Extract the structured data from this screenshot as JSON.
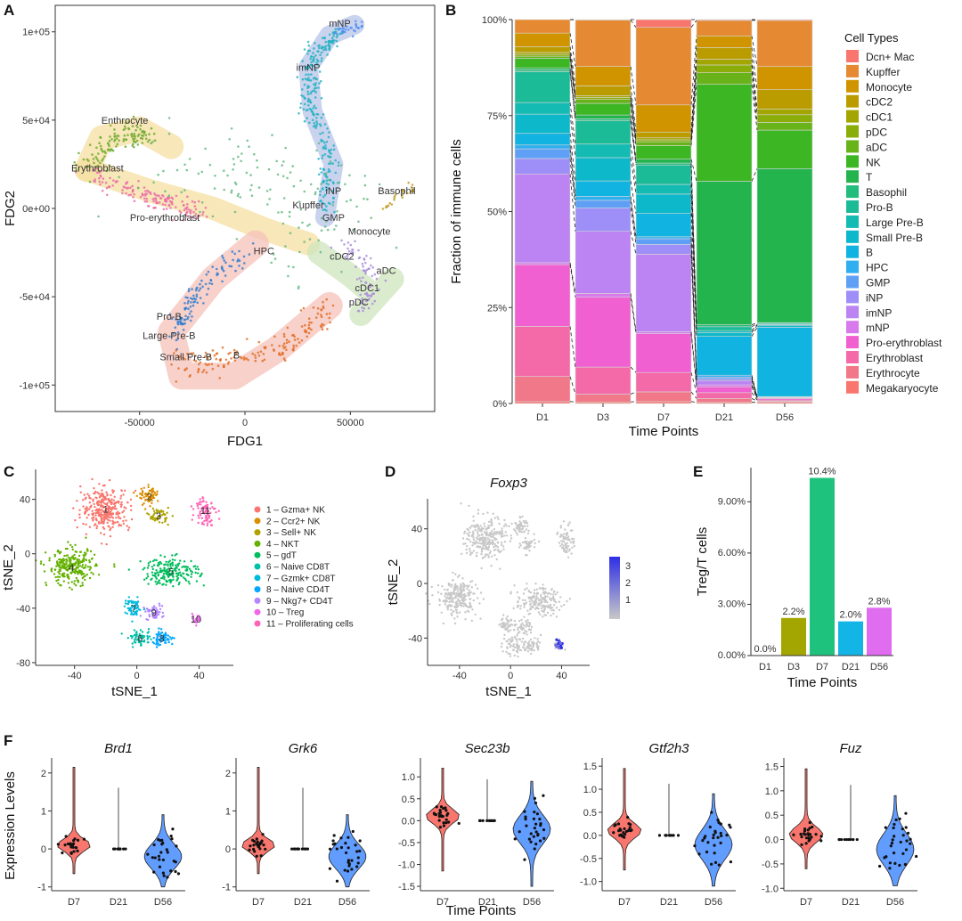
{
  "panels": {
    "A": "A",
    "B": "B",
    "C": "C",
    "D": "D",
    "E": "E",
    "F": "F"
  },
  "chart_data": [
    {
      "id": "A",
      "type": "scatter",
      "xlabel": "FDG1",
      "ylabel": "FDG2",
      "x_ticks": [
        "-50000",
        "0",
        "50000"
      ],
      "y_ticks": [
        "1e+05",
        "5e+04",
        "0e+00",
        "-5e+04",
        "-1e+05"
      ],
      "xlim": [
        -90000,
        90000
      ],
      "ylim": [
        -115000,
        115000
      ],
      "annotations": [
        {
          "label": "mNP",
          "x": 45000,
          "y": 103000
        },
        {
          "label": "imNP",
          "x": 30000,
          "y": 78000
        },
        {
          "label": "Enthrocyte",
          "x": -57000,
          "y": 48000
        },
        {
          "label": "Erythroblast",
          "x": -70000,
          "y": 21000
        },
        {
          "label": "iNP",
          "x": 42000,
          "y": 8000
        },
        {
          "label": "Basophil",
          "x": 72000,
          "y": 8000
        },
        {
          "label": "Kupffer",
          "x": 30000,
          "y": 0
        },
        {
          "label": "Pro-erythroblast",
          "x": -38000,
          "y": -7000
        },
        {
          "label": "GMP",
          "x": 42000,
          "y": -7000
        },
        {
          "label": "Monocyte",
          "x": 59000,
          "y": -15000
        },
        {
          "label": "HPC",
          "x": 9000,
          "y": -26000
        },
        {
          "label": "cDC2",
          "x": 46000,
          "y": -29000
        },
        {
          "label": "aDC",
          "x": 67000,
          "y": -37000
        },
        {
          "label": "cDC1",
          "x": 58000,
          "y": -47000
        },
        {
          "label": "pDC",
          "x": 54000,
          "y": -55000
        },
        {
          "label": "Pro-B",
          "x": -36000,
          "y": -63000
        },
        {
          "label": "Large Pre-B",
          "x": -36000,
          "y": -74000
        },
        {
          "label": "B",
          "x": -4000,
          "y": -85000
        },
        {
          "label": "Small Pre-B",
          "x": -28000,
          "y": -86000
        }
      ]
    },
    {
      "id": "B",
      "type": "bar",
      "stacked": true,
      "xlabel": "Time Points",
      "ylabel": "Fraction of immune cells",
      "categories": [
        "D1",
        "D3",
        "D7",
        "D21",
        "D56"
      ],
      "y_ticks": [
        "0%",
        "25%",
        "50%",
        "75%",
        "100%"
      ],
      "legend_title": "Cell Types",
      "legend_position": "right",
      "series": [
        {
          "name": "Megakaryocyte",
          "color": "#F8766D",
          "values": [
            0.5,
            0.4,
            0.5,
            0.3,
            0.3
          ]
        },
        {
          "name": "Erythrocyte",
          "color": "#F07888",
          "values": [
            6.5,
            2.0,
            2.5,
            1.0,
            0.3
          ]
        },
        {
          "name": "Erythroblast",
          "color": "#F46AA8",
          "values": [
            13.0,
            7.0,
            5.0,
            1.5,
            0.3
          ]
        },
        {
          "name": "Pro-erythroblast",
          "color": "#F060D0",
          "values": [
            16.0,
            18.0,
            10.0,
            1.5,
            0.4
          ]
        },
        {
          "name": "mNP",
          "color": "#D77AEC",
          "values": [
            0.5,
            1.0,
            0.5,
            0.5,
            0.1
          ]
        },
        {
          "name": "imNP",
          "color": "#BC83F2",
          "values": [
            23.0,
            16.0,
            20.0,
            1.0,
            0.1
          ]
        },
        {
          "name": "iNP",
          "color": "#9E8EF7",
          "values": [
            4.0,
            6.0,
            2.5,
            0.5,
            0.1
          ]
        },
        {
          "name": "GMP",
          "color": "#5FA0F6",
          "values": [
            2.5,
            2.0,
            1.5,
            0.5,
            0.1
          ]
        },
        {
          "name": "HPC",
          "color": "#2FAEF0",
          "values": [
            1.0,
            1.0,
            0.5,
            0.5,
            0.1
          ]
        },
        {
          "name": "B",
          "color": "#11B3E0",
          "values": [
            3.0,
            4.0,
            6.0,
            10.0,
            18.0
          ]
        },
        {
          "name": "Small Pre-B",
          "color": "#0DB8CA",
          "values": [
            5.0,
            6.0,
            5.0,
            1.0,
            0.5
          ]
        },
        {
          "name": "Large Pre-B",
          "color": "#13BBB2",
          "values": [
            3.0,
            3.5,
            2.5,
            0.5,
            0.2
          ]
        },
        {
          "name": "Pro-B",
          "color": "#1CBB98",
          "values": [
            8.0,
            6.0,
            5.0,
            1.0,
            0.3
          ]
        },
        {
          "name": "Basophil",
          "color": "#22BC7D",
          "values": [
            0.5,
            0.5,
            0.5,
            0.5,
            0.2
          ]
        },
        {
          "name": "T",
          "color": "#24B44E",
          "values": [
            0.5,
            1.0,
            1.0,
            37.0,
            40.0
          ]
        },
        {
          "name": "NK",
          "color": "#3DB624",
          "values": [
            2.5,
            3.0,
            3.5,
            25.0,
            10.0
          ]
        },
        {
          "name": "aDC",
          "color": "#68B31A",
          "values": [
            0.5,
            1.0,
            1.0,
            3.0,
            2.0
          ]
        },
        {
          "name": "pDC",
          "color": "#8BAD0A",
          "values": [
            0.5,
            0.5,
            0.5,
            2.0,
            2.0
          ]
        },
        {
          "name": "cDC1",
          "color": "#A3A600",
          "values": [
            0.5,
            0.5,
            0.5,
            1.5,
            1.5
          ]
        },
        {
          "name": "cDC2",
          "color": "#BB9C00",
          "values": [
            1.5,
            2.5,
            1.5,
            3.0,
            5.0
          ]
        },
        {
          "name": "Monocyte",
          "color": "#CF9400",
          "values": [
            3.5,
            5.0,
            7.0,
            3.0,
            6.0
          ]
        },
        {
          "name": "Kupffer",
          "color": "#E58A33",
          "values": [
            3.5,
            12.0,
            20.0,
            4.0,
            12.0
          ]
        },
        {
          "name": "Dcn+ Mac",
          "color": "#F8766D",
          "values": [
            0.0,
            0.1,
            2.0,
            0.2,
            0.2
          ]
        }
      ]
    },
    {
      "id": "C",
      "type": "scatter",
      "xlabel": "tSNE_1",
      "ylabel": "tSNE_2",
      "x_ticks": [
        "-40",
        "0",
        "40"
      ],
      "y_ticks": [
        "40",
        "0",
        "-40",
        "-80"
      ],
      "xlim": [
        -65,
        62
      ],
      "ylim": [
        -82,
        62
      ],
      "legend_position": "right",
      "clusters": [
        {
          "id": "1",
          "name": "1 – Gzma+ NK",
          "color": "#F8766D",
          "cx": -20,
          "cy": 33
        },
        {
          "id": "2",
          "name": "2 – Ccr2+ NK",
          "color": "#DB8E00",
          "cx": 8,
          "cy": 42
        },
        {
          "id": "3",
          "name": "3 – Sell+ NK",
          "color": "#AEA200",
          "cx": 14,
          "cy": 28
        },
        {
          "id": "4",
          "name": "4 – NKT",
          "color": "#64B200",
          "cx": -42,
          "cy": -10
        },
        {
          "id": "5",
          "name": "5 – gdT",
          "color": "#00BD5C",
          "cx": 22,
          "cy": -13
        },
        {
          "id": "6",
          "name": "6 – Naive CD8T",
          "color": "#00C1A7",
          "cx": 2,
          "cy": -62
        },
        {
          "id": "7",
          "name": "7 – Gzmk+ CD8T",
          "color": "#00BADE",
          "cx": -2,
          "cy": -40
        },
        {
          "id": "8",
          "name": "8 – Naive CD4T",
          "color": "#00A6FF",
          "cx": 16,
          "cy": -62
        },
        {
          "id": "9",
          "name": "9 – Nkg7+ CD4T",
          "color": "#B385FF",
          "cx": 11,
          "cy": -43
        },
        {
          "id": "10",
          "name": "10 – Treg",
          "color": "#EF67EB",
          "cx": 38,
          "cy": -48
        },
        {
          "id": "11",
          "name": "11 – Proliferating cells",
          "color": "#FF63B6",
          "cx": 44,
          "cy": 32
        }
      ]
    },
    {
      "id": "D",
      "type": "scatter",
      "title": "Foxp3",
      "xlabel": "tSNE_1",
      "ylabel": "tSNE_2",
      "x_ticks": [
        "-40",
        "0",
        "40"
      ],
      "y_ticks": [
        "40",
        "0",
        "-40"
      ],
      "colorbar_ticks": [
        "3",
        "2",
        "1"
      ],
      "color_low": "#C8C8C8",
      "color_high": "#2E2EE6"
    },
    {
      "id": "E",
      "type": "bar",
      "xlabel": "Time Points",
      "ylabel": "Treg/T cells",
      "categories": [
        "D1",
        "D3",
        "D7",
        "D21",
        "D56"
      ],
      "values": [
        0.0,
        2.2,
        10.4,
        2.0,
        2.8
      ],
      "data_labels": [
        "0.0%",
        "2.2%",
        "10.4%",
        "2.0%",
        "2.8%"
      ],
      "colors": [
        "#F8766D",
        "#A3A500",
        "#1FC27C",
        "#12B5E6",
        "#E06CF0"
      ],
      "y_ticks": [
        "0.00%",
        "3.00%",
        "6.00%",
        "9.00%"
      ],
      "ylim": [
        0,
        11
      ]
    },
    {
      "id": "F",
      "type": "violin",
      "xlabel": "Time Points",
      "ylabel": "Expression Levels",
      "categories": [
        "D7",
        "D21",
        "D56"
      ],
      "colors": [
        "#F8766D",
        "#00BA38",
        "#619CFF"
      ],
      "genes": [
        {
          "title": "Brd1",
          "y_ticks": [
            "2",
            "1",
            "0",
            "-1"
          ],
          "ylim": [
            -1.1,
            2.3
          ]
        },
        {
          "title": "Grk6",
          "y_ticks": [
            "2",
            "1",
            "0",
            "-1"
          ],
          "ylim": [
            -1.1,
            2.3
          ]
        },
        {
          "title": "Sec23b",
          "y_ticks": [
            "1.0",
            "0.5",
            "0.0",
            "-0.5",
            "-1.0",
            "-1.5"
          ],
          "ylim": [
            -1.6,
            1.35
          ]
        },
        {
          "title": "Gtf2h3",
          "y_ticks": [
            "1.5",
            "1.0",
            "0.5",
            "0.0",
            "-0.5",
            "-1.0"
          ],
          "ylim": [
            -1.2,
            1.6
          ]
        },
        {
          "title": "Fuz",
          "y_ticks": [
            "1.5",
            "1.0",
            "0.5",
            "0.0",
            "-0.5",
            "-1.0"
          ],
          "ylim": [
            -1.05,
            1.6
          ]
        }
      ]
    }
  ]
}
